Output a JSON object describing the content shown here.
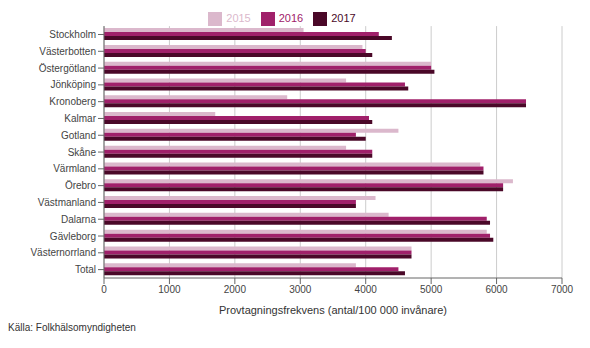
{
  "chart_data": {
    "type": "bar",
    "orientation": "horizontal",
    "xlabel": "Provtagningsfrekvens (antal/100 000 invånare)",
    "annotations": [
      "Källa: Folkhälsomyndigheten"
    ],
    "categories": [
      "Stockholm",
      "Västerbotten",
      "Östergötland",
      "Jönköping",
      "Kronoberg",
      "Kalmar",
      "Gotland",
      "Skåne",
      "Värmland",
      "Örebro",
      "Västmanland",
      "Dalarna",
      "Gävleborg",
      "Västernorrland",
      "Total"
    ],
    "series": [
      {
        "name": "2015",
        "color": "#dbb8cc",
        "values": [
          3050,
          3950,
          5000,
          3700,
          2800,
          1700,
          4500,
          3700,
          5750,
          6250,
          4150,
          4350,
          5850,
          4700,
          3850
        ]
      },
      {
        "name": "2016",
        "color": "#a0206a",
        "values": [
          4200,
          4000,
          5000,
          4600,
          6450,
          4050,
          3850,
          4100,
          5800,
          6100,
          3850,
          5850,
          5900,
          4700,
          4500
        ]
      },
      {
        "name": "2017",
        "color": "#4a0828",
        "values": [
          4400,
          4100,
          5050,
          4650,
          6450,
          4100,
          4000,
          4100,
          5800,
          6100,
          3850,
          5900,
          5950,
          4700,
          4600
        ]
      }
    ],
    "xlim": [
      0,
      7000
    ],
    "xticks": [
      0,
      1000,
      2000,
      3000,
      4000,
      5000,
      6000,
      7000
    ],
    "grid": true,
    "legend": "top"
  }
}
